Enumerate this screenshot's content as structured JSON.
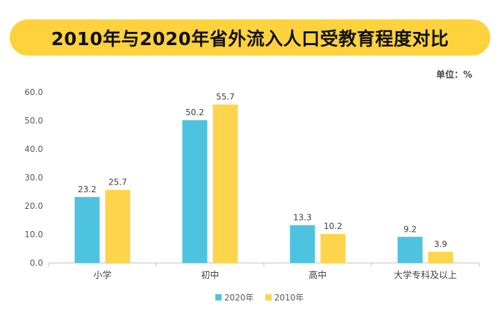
{
  "title": "2010年与2020年省外流入人口受教育程度对比",
  "unit_label": "单位：%",
  "colors": {
    "banner": "#fdd23d",
    "series_2020": "#4ec3e0",
    "series_2010": "#fdd44b",
    "axis": "#bfbfbf",
    "text": "#595959"
  },
  "chart_data": {
    "type": "bar",
    "title": "2010年与2020年省外流入人口受教育程度对比",
    "ylabel": "",
    "xlabel": "",
    "ylim": [
      0,
      60
    ],
    "yticks": [
      "0.0",
      "10.0",
      "20.0",
      "30.0",
      "40.0",
      "50.0",
      "60.0"
    ],
    "categories": [
      "小学",
      "初中",
      "高中",
      "大学专科及以上"
    ],
    "series": [
      {
        "name": "2020年",
        "values": [
          23.2,
          50.2,
          13.3,
          9.2
        ],
        "labels": [
          "23.2",
          "50.2",
          "13.3",
          "9.2"
        ]
      },
      {
        "name": "2010年",
        "values": [
          25.7,
          55.7,
          10.2,
          3.9
        ],
        "labels": [
          "25.7",
          "55.7",
          "10.2",
          "3.9"
        ]
      }
    ],
    "legend_position": "bottom-center",
    "grid": false
  }
}
